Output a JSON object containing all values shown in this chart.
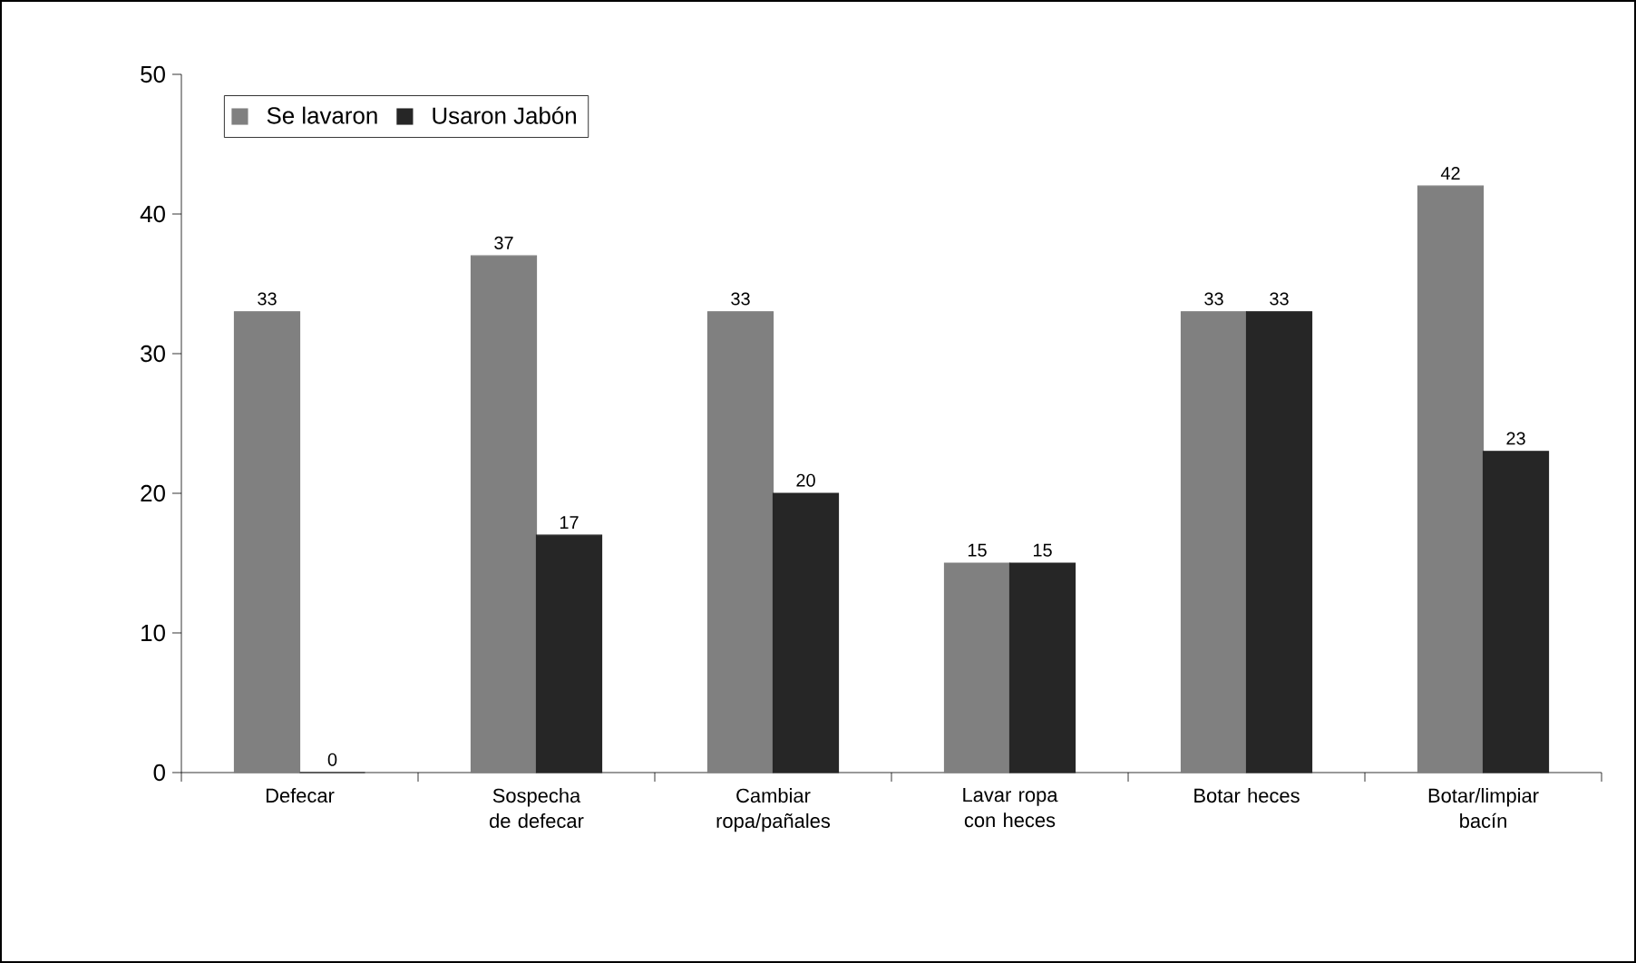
{
  "chart_data": {
    "type": "bar",
    "categories": [
      "Defecar",
      "Sospecha de defecar",
      "Cambiar ropa/pañales",
      "Lavar ropa con heces",
      "Botar heces",
      "Botar/limpiar bacín"
    ],
    "series": [
      {
        "name": "Se lavaron",
        "color": "#808080",
        "values": [
          33,
          37,
          33,
          15,
          33,
          42
        ]
      },
      {
        "name": "Usaron Jabón",
        "color": "#262626",
        "values": [
          0,
          17,
          20,
          15,
          33,
          23
        ]
      }
    ],
    "ylim": [
      0,
      50
    ],
    "yticks": [
      0,
      10,
      20,
      30,
      40,
      50
    ],
    "data_labels": true,
    "legend": "top left",
    "grid": false
  }
}
